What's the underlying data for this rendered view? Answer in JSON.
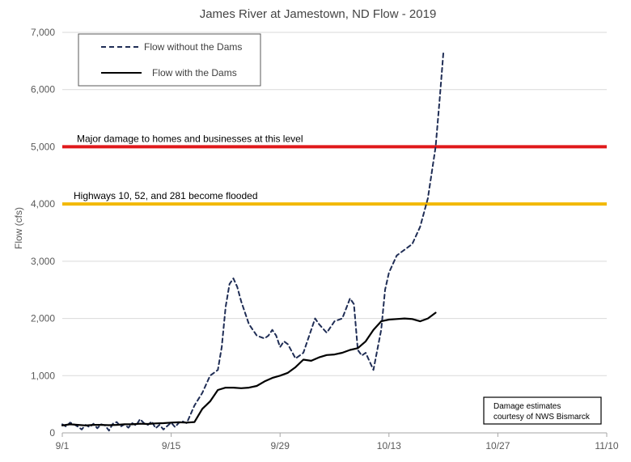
{
  "chart_data": {
    "type": "line",
    "title": "James River at Jamestown, ND Flow - 2019",
    "xlabel": "",
    "ylabel": "Flow (cfs)",
    "ylim": [
      0,
      7000
    ],
    "yticks": [
      0,
      1000,
      2000,
      3000,
      4000,
      5000,
      6000,
      7000
    ],
    "ytick_labels": [
      "0",
      "1,000",
      "2,000",
      "3,000",
      "4,000",
      "5,000",
      "6,000",
      "7,000"
    ],
    "xlim_days": [
      0,
      70
    ],
    "xticks": [
      {
        "day": 0,
        "label": "9/1"
      },
      {
        "day": 14,
        "label": "9/15"
      },
      {
        "day": 28,
        "label": "9/29"
      },
      {
        "day": 42,
        "label": "10/13"
      },
      {
        "day": 56,
        "label": "10/27"
      },
      {
        "day": 70,
        "label": "11/10"
      }
    ],
    "grid": "horizontal",
    "legend_position": "top-left",
    "series": [
      {
        "name": "Flow without the Dams",
        "style": "dashed",
        "color": "#1f2d55",
        "points": [
          [
            0,
            150
          ],
          [
            0.5,
            110
          ],
          [
            1,
            180
          ],
          [
            1.5,
            150
          ],
          [
            2,
            110
          ],
          [
            2.5,
            60
          ],
          [
            3,
            140
          ],
          [
            3.5,
            100
          ],
          [
            4,
            160
          ],
          [
            4.5,
            80
          ],
          [
            5,
            150
          ],
          [
            5.5,
            130
          ],
          [
            6,
            40
          ],
          [
            6.5,
            160
          ],
          [
            7,
            190
          ],
          [
            7.5,
            110
          ],
          [
            8,
            150
          ],
          [
            8.5,
            90
          ],
          [
            9,
            170
          ],
          [
            9.5,
            130
          ],
          [
            10,
            240
          ],
          [
            10.5,
            170
          ],
          [
            11,
            140
          ],
          [
            11.5,
            200
          ],
          [
            12,
            80
          ],
          [
            12.5,
            140
          ],
          [
            13,
            60
          ],
          [
            13.5,
            120
          ],
          [
            14,
            180
          ],
          [
            14.5,
            100
          ],
          [
            15,
            180
          ],
          [
            15.5,
            200
          ],
          [
            16,
            170
          ],
          [
            17,
            480
          ],
          [
            18,
            700
          ],
          [
            19,
            1000
          ],
          [
            20,
            1100
          ],
          [
            20.5,
            1500
          ],
          [
            21,
            2200
          ],
          [
            21.5,
            2600
          ],
          [
            22,
            2700
          ],
          [
            22.5,
            2550
          ],
          [
            23,
            2300
          ],
          [
            24,
            1900
          ],
          [
            25,
            1700
          ],
          [
            26,
            1650
          ],
          [
            26.5,
            1700
          ],
          [
            27,
            1800
          ],
          [
            27.5,
            1700
          ],
          [
            28,
            1500
          ],
          [
            28.5,
            1600
          ],
          [
            29,
            1550
          ],
          [
            30,
            1300
          ],
          [
            31,
            1400
          ],
          [
            32,
            1800
          ],
          [
            32.5,
            2000
          ],
          [
            33,
            1900
          ],
          [
            34,
            1750
          ],
          [
            35,
            1950
          ],
          [
            36,
            2000
          ],
          [
            37,
            2350
          ],
          [
            37.5,
            2250
          ],
          [
            38,
            1450
          ],
          [
            38.5,
            1350
          ],
          [
            39,
            1400
          ],
          [
            40,
            1100
          ],
          [
            41,
            1800
          ],
          [
            41.5,
            2500
          ],
          [
            42,
            2800
          ],
          [
            43,
            3100
          ],
          [
            44,
            3200
          ],
          [
            45,
            3300
          ],
          [
            46,
            3600
          ],
          [
            47,
            4100
          ],
          [
            48,
            5000
          ],
          [
            48.5,
            5800
          ],
          [
            49,
            6650
          ]
        ]
      },
      {
        "name": "Flow with the Dams",
        "style": "solid",
        "color": "#000000",
        "points": [
          [
            0,
            130
          ],
          [
            1,
            150
          ],
          [
            2,
            140
          ],
          [
            3,
            130
          ],
          [
            4,
            140
          ],
          [
            5,
            140
          ],
          [
            6,
            135
          ],
          [
            7,
            140
          ],
          [
            8,
            150
          ],
          [
            9,
            150
          ],
          [
            10,
            160
          ],
          [
            11,
            155
          ],
          [
            12,
            165
          ],
          [
            13,
            170
          ],
          [
            14,
            180
          ],
          [
            15,
            185
          ],
          [
            16,
            180
          ],
          [
            17,
            190
          ],
          [
            18,
            420
          ],
          [
            19,
            550
          ],
          [
            20,
            750
          ],
          [
            21,
            790
          ],
          [
            22,
            790
          ],
          [
            23,
            780
          ],
          [
            24,
            790
          ],
          [
            25,
            820
          ],
          [
            26,
            900
          ],
          [
            27,
            960
          ],
          [
            28,
            1000
          ],
          [
            29,
            1050
          ],
          [
            30,
            1150
          ],
          [
            31,
            1280
          ],
          [
            32,
            1260
          ],
          [
            33,
            1320
          ],
          [
            34,
            1360
          ],
          [
            35,
            1370
          ],
          [
            36,
            1400
          ],
          [
            37,
            1450
          ],
          [
            38,
            1480
          ],
          [
            39,
            1600
          ],
          [
            40,
            1800
          ],
          [
            41,
            1950
          ],
          [
            42,
            1980
          ],
          [
            43,
            1990
          ],
          [
            44,
            2000
          ],
          [
            45,
            1990
          ],
          [
            46,
            1950
          ],
          [
            47,
            2000
          ],
          [
            48,
            2100
          ]
        ]
      }
    ],
    "reference_lines": [
      {
        "value": 5000,
        "label": "Major damage to homes and businesses at this level",
        "color": "#e0191b"
      },
      {
        "value": 4000,
        "label": "Highways 10, 52, and 281 become flooded",
        "color": "#f2b800"
      }
    ],
    "annotations": [
      {
        "lines": [
          "Damage estimates",
          "courtesy of NWS Bismarck"
        ]
      }
    ]
  }
}
